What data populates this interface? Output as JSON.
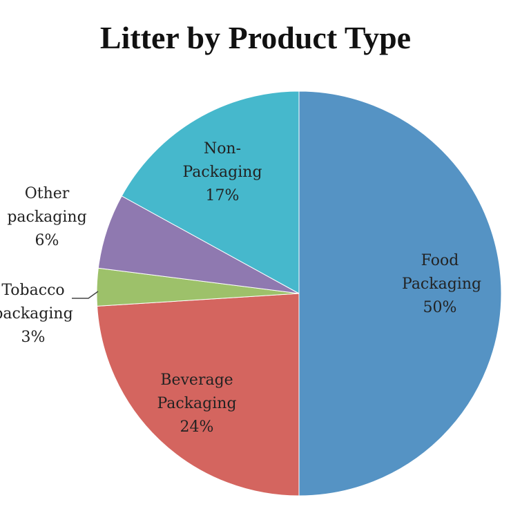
{
  "chart_data": {
    "type": "pie",
    "title": "Litter by Product Type",
    "categories": [
      "Food Packaging",
      "Beverage Packaging",
      "Tobacco packaging",
      "Other packaging",
      "Non-Packaging"
    ],
    "values": [
      50,
      24,
      3,
      6,
      17
    ],
    "value_labels": [
      "50%",
      "24%",
      "3%",
      "6%",
      "17%"
    ],
    "colors": [
      "#5593c4",
      "#d4655f",
      "#9dc16a",
      "#8f79b0",
      "#46b8cc"
    ]
  }
}
